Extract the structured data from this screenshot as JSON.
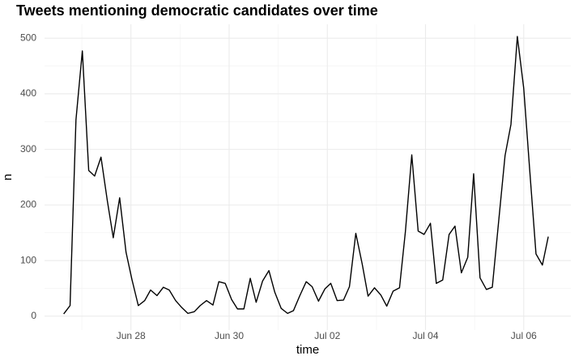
{
  "chart_data": {
    "type": "line",
    "title": "Tweets mentioning democratic candidates over time",
    "xlabel": "time",
    "ylabel": "n",
    "color": "#000000",
    "x": [
      -1.37,
      -1.24,
      -1.12,
      -0.99,
      -0.86,
      -0.74,
      -0.61,
      -0.48,
      -0.36,
      -0.23,
      -0.1,
      0.02,
      0.15,
      0.28,
      0.4,
      0.53,
      0.66,
      0.78,
      0.91,
      1.03,
      1.16,
      1.29,
      1.41,
      1.54,
      1.67,
      1.79,
      1.92,
      2.05,
      2.17,
      2.3,
      2.43,
      2.55,
      2.68,
      2.81,
      2.93,
      3.06,
      3.19,
      3.31,
      3.44,
      3.57,
      3.69,
      3.82,
      3.95,
      4.07,
      4.2,
      4.33,
      4.45,
      4.58,
      4.71,
      4.83,
      4.96,
      5.09,
      5.21,
      5.34,
      5.47,
      5.59,
      5.72,
      5.85,
      5.97,
      6.1,
      6.22,
      6.35,
      6.48,
      6.6,
      6.73,
      6.86,
      6.98,
      7.11,
      7.24,
      7.36,
      7.49,
      7.62,
      7.74,
      7.87,
      8.0,
      8.12,
      8.25,
      8.38,
      8.5
    ],
    "values": [
      4,
      19,
      353,
      477,
      262,
      252,
      286,
      207,
      141,
      213,
      115,
      66,
      19,
      28,
      47,
      37,
      52,
      47,
      28,
      16,
      5,
      8,
      19,
      28,
      20,
      62,
      59,
      30,
      13,
      13,
      68,
      25,
      63,
      82,
      43,
      14,
      5,
      10,
      37,
      62,
      53,
      27,
      49,
      59,
      28,
      29,
      53,
      149,
      94,
      36,
      51,
      38,
      18,
      45,
      51,
      152,
      290,
      153,
      147,
      167,
      59,
      65,
      147,
      162,
      78,
      106,
      256,
      69,
      48,
      52,
      171,
      289,
      345,
      503,
      410,
      265,
      112,
      92,
      143
    ],
    "xlim": [
      -1.76,
      8.96
    ],
    "xticks": [
      {
        "value": 0,
        "label": "Jun 28"
      },
      {
        "value": 2,
        "label": "Jun 30"
      },
      {
        "value": 4,
        "label": "Jul 02"
      },
      {
        "value": 6,
        "label": "Jul 04"
      },
      {
        "value": 8,
        "label": "Jul 06"
      }
    ],
    "xminorticks": [
      -1,
      1,
      3,
      5,
      7
    ],
    "ylim": [
      -25,
      525
    ],
    "yticks": [
      0,
      100,
      200,
      300,
      400,
      500
    ],
    "yminorticks": [
      50,
      150,
      250,
      350,
      450
    ],
    "grid": true
  }
}
